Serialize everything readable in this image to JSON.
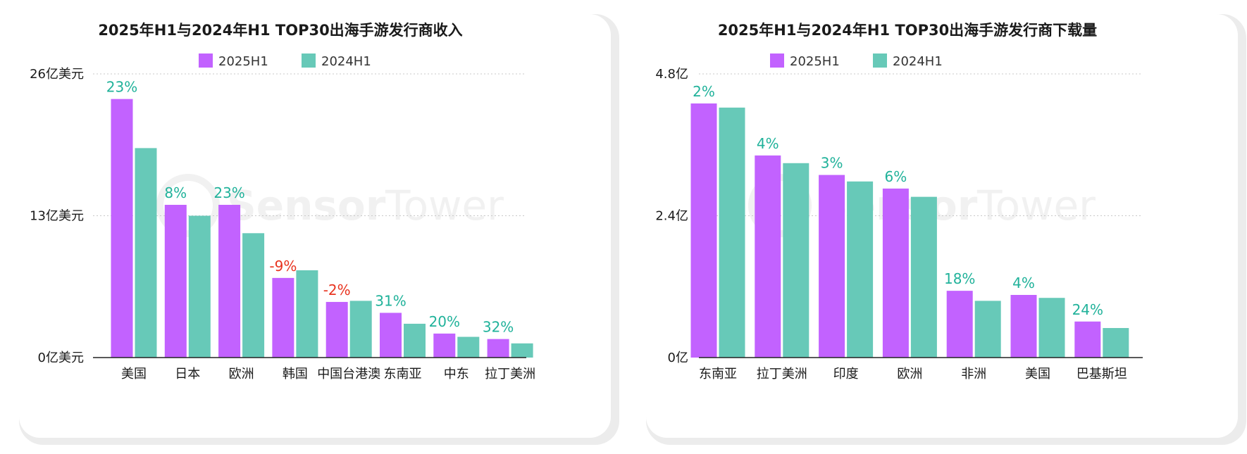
{
  "colors": {
    "series_2025": "#c262ff",
    "series_2024": "#67c9b8",
    "pct_positive": "#20b29a",
    "pct_negative": "#e8331f",
    "grid": "#c8c8c8",
    "axis": "#222222"
  },
  "watermark": {
    "brand_bold": "Sensor",
    "brand_light": "Tower"
  },
  "chart_data": [
    {
      "type": "bar",
      "title": "2025年H1与2024年H1 TOP30出海手游发行商收入",
      "ylabel": "",
      "ylim": [
        0,
        26
      ],
      "y_ticks": [
        {
          "value": 0,
          "label": "0亿美元"
        },
        {
          "value": 13,
          "label": "13亿美元"
        },
        {
          "value": 26,
          "label": "26亿美元"
        }
      ],
      "grid": true,
      "legend_position": "top-center",
      "categories": [
        "美国",
        "日本",
        "欧洲",
        "韩国",
        "中国台港澳",
        "东南亚",
        "中东",
        "拉丁美洲"
      ],
      "series": [
        {
          "name": "2025H1",
          "values": [
            23.7,
            14.0,
            14.0,
            7.3,
            5.1,
            4.1,
            2.2,
            1.7
          ]
        },
        {
          "name": "2024H1",
          "values": [
            19.2,
            13.0,
            11.4,
            8.0,
            5.2,
            3.1,
            1.9,
            1.3
          ]
        }
      ],
      "growth_labels": [
        "23%",
        "8%",
        "23%",
        "-9%",
        "-2%",
        "31%",
        "20%",
        "32%"
      ]
    },
    {
      "type": "bar",
      "title": "2025年H1与2024年H1 TOP30出海手游发行商下载量",
      "ylabel": "",
      "ylim": [
        0,
        4.8
      ],
      "y_ticks": [
        {
          "value": 0,
          "label": "0亿"
        },
        {
          "value": 2.4,
          "label": "2.4亿"
        },
        {
          "value": 4.8,
          "label": "4.8亿"
        }
      ],
      "grid": true,
      "legend_position": "top-center",
      "categories": [
        "东南亚",
        "拉丁美洲",
        "印度",
        "欧洲",
        "非洲",
        "美国",
        "巴基斯坦"
      ],
      "series": [
        {
          "name": "2025H1",
          "values": [
            4.3,
            3.42,
            3.09,
            2.86,
            1.13,
            1.06,
            0.61
          ]
        },
        {
          "name": "2024H1",
          "values": [
            4.23,
            3.29,
            2.98,
            2.72,
            0.96,
            1.01,
            0.5
          ]
        }
      ],
      "growth_labels": [
        "2%",
        "4%",
        "3%",
        "6%",
        "18%",
        "4%",
        "24%"
      ]
    }
  ]
}
